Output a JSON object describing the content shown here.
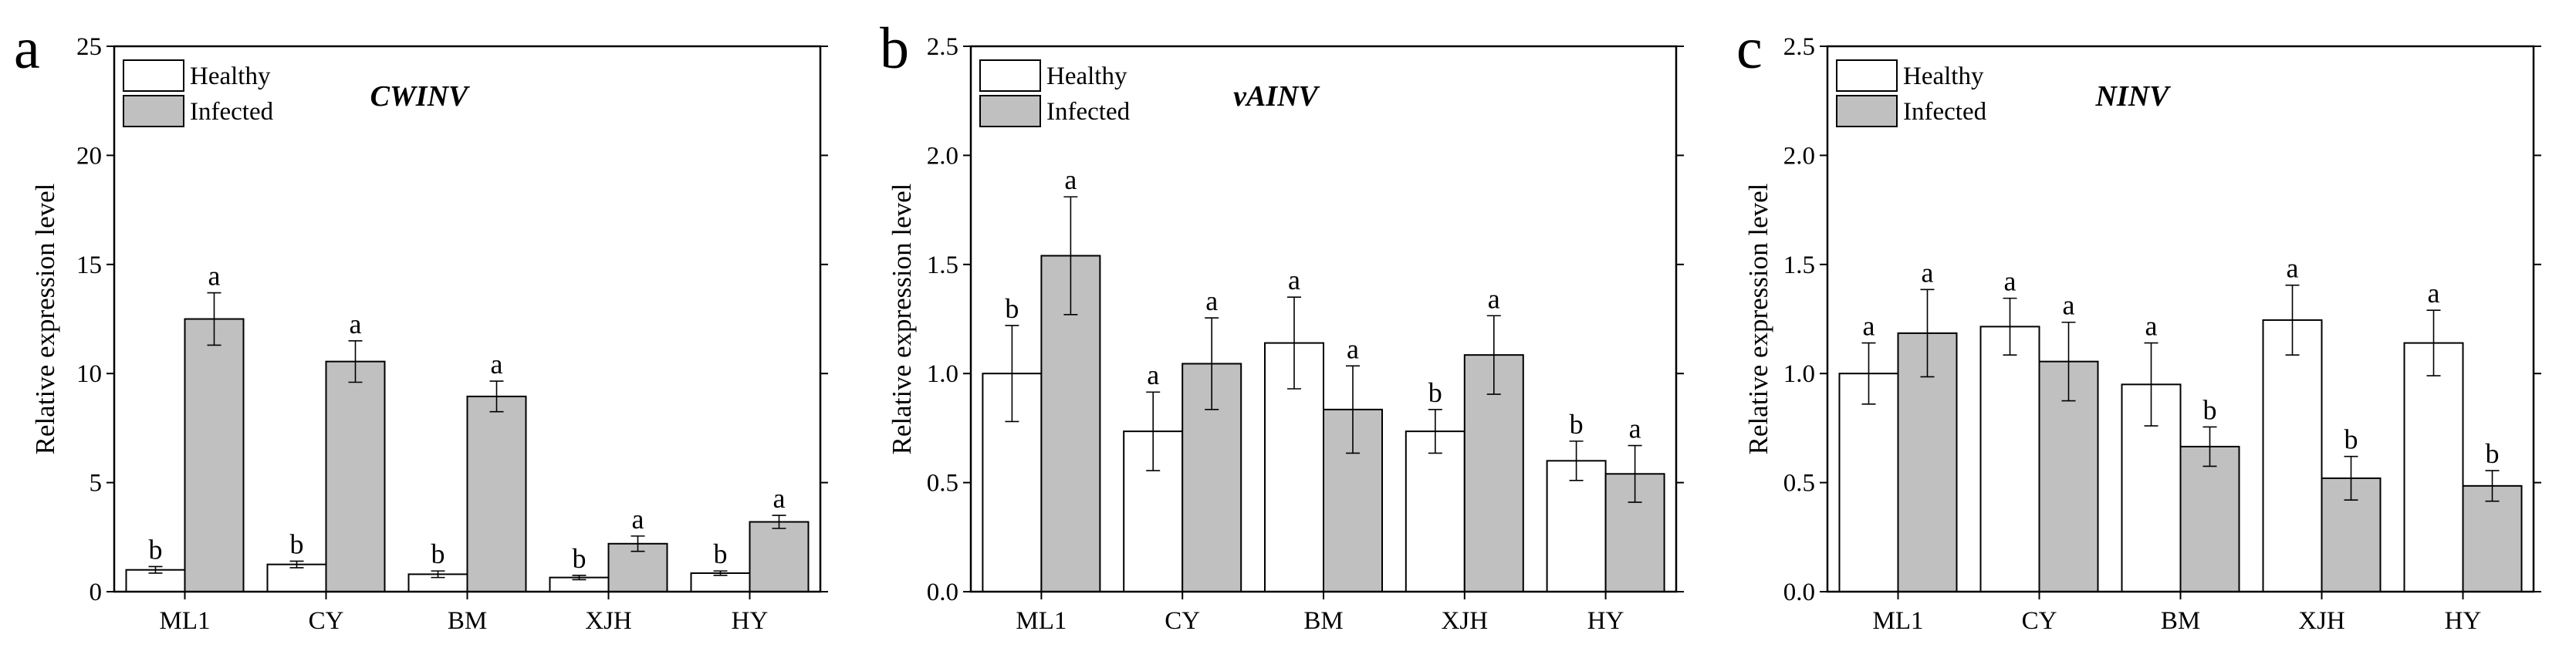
{
  "chart_data": [
    {
      "type": "bar",
      "panel_label": "a",
      "gene": "CWINV",
      "ylabel": "Relative expression level",
      "xlabel": "",
      "ylim": [
        0,
        25
      ],
      "yticks": [
        "0",
        "5",
        "10",
        "15",
        "20",
        "25"
      ],
      "categories": [
        "ML1",
        "CY",
        "BM",
        "XJH",
        "HY"
      ],
      "legend": {
        "position": "top-left",
        "entries": [
          "Healthy",
          "Infected"
        ]
      },
      "series": [
        {
          "name": "Healthy",
          "color": "#ffffff",
          "values": [
            1.0,
            1.25,
            0.8,
            0.65,
            0.85
          ],
          "errors": [
            0.15,
            0.15,
            0.15,
            0.1,
            0.1
          ],
          "letters": [
            "b",
            "b",
            "b",
            "b",
            "b"
          ]
        },
        {
          "name": "Infected",
          "color": "#c0c0c0",
          "values": [
            12.5,
            10.55,
            8.95,
            2.2,
            3.2
          ],
          "errors": [
            1.2,
            0.95,
            0.7,
            0.35,
            0.3
          ],
          "letters": [
            "a",
            "a",
            "a",
            "a",
            "a"
          ]
        }
      ]
    },
    {
      "type": "bar",
      "panel_label": "b",
      "gene": "vAINV",
      "ylabel": "Relative expression level",
      "xlabel": "",
      "ylim": [
        0,
        2.5
      ],
      "yticks": [
        "0.0",
        "0.5",
        "1.0",
        "1.5",
        "2.0",
        "2.5"
      ],
      "categories": [
        "ML1",
        "CY",
        "BM",
        "XJH",
        "HY"
      ],
      "legend": {
        "position": "top-left",
        "entries": [
          "Healthy",
          "Infected"
        ]
      },
      "series": [
        {
          "name": "Healthy",
          "color": "#ffffff",
          "values": [
            1.0,
            0.735,
            1.14,
            0.735,
            0.6
          ],
          "errors": [
            0.22,
            0.18,
            0.21,
            0.1,
            0.09
          ],
          "letters": [
            "b",
            "a",
            "a",
            "b",
            "b"
          ]
        },
        {
          "name": "Infected",
          "color": "#c0c0c0",
          "values": [
            1.54,
            1.045,
            0.835,
            1.085,
            0.54
          ],
          "errors": [
            0.27,
            0.21,
            0.2,
            0.18,
            0.13
          ],
          "letters": [
            "a",
            "a",
            "a",
            "a",
            "a"
          ]
        }
      ]
    },
    {
      "type": "bar",
      "panel_label": "c",
      "gene": "NINV",
      "ylabel": "Relative expression level",
      "xlabel": "",
      "ylim": [
        0,
        2.5
      ],
      "yticks": [
        "0.0",
        "0.5",
        "1.0",
        "1.5",
        "2.0",
        "2.5"
      ],
      "categories": [
        "ML1",
        "CY",
        "BM",
        "XJH",
        "HY"
      ],
      "legend": {
        "position": "top-left",
        "entries": [
          "Healthy",
          "Infected"
        ]
      },
      "series": [
        {
          "name": "Healthy",
          "color": "#ffffff",
          "values": [
            1.0,
            1.215,
            0.95,
            1.245,
            1.14
          ],
          "errors": [
            0.14,
            0.13,
            0.19,
            0.16,
            0.15
          ],
          "letters": [
            "a",
            "a",
            "a",
            "a",
            "a"
          ]
        },
        {
          "name": "Infected",
          "color": "#c0c0c0",
          "values": [
            1.185,
            1.055,
            0.665,
            0.52,
            0.485
          ],
          "errors": [
            0.2,
            0.18,
            0.09,
            0.1,
            0.07
          ],
          "letters": [
            "a",
            "a",
            "b",
            "b",
            "b"
          ]
        }
      ]
    }
  ]
}
